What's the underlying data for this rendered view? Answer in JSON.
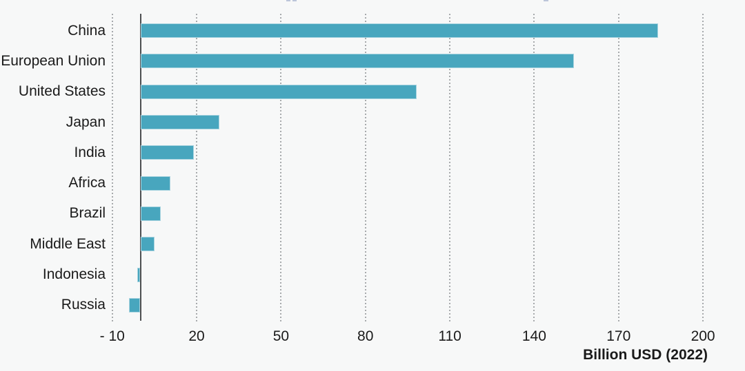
{
  "chart_data": {
    "type": "bar",
    "orientation": "horizontal",
    "title": "",
    "xlabel": "Billion USD (2022)",
    "ylabel": "",
    "categories": [
      "China",
      "European Union",
      "United States",
      "Japan",
      "India",
      "Africa",
      "Brazil",
      "Middle East",
      "Indonesia",
      "Russia"
    ],
    "values": [
      184,
      154,
      98,
      28,
      19,
      10.5,
      7,
      5,
      -1,
      -4
    ],
    "x_ticks": [
      {
        "label": "- 10",
        "value": -10
      },
      {
        "label": "20",
        "value": 20
      },
      {
        "label": "50",
        "value": 50
      },
      {
        "label": "80",
        "value": 80
      },
      {
        "label": "110",
        "value": 110
      },
      {
        "label": "140",
        "value": 140
      },
      {
        "label": "170",
        "value": 170
      },
      {
        "label": "200",
        "value": 200
      }
    ],
    "xlim": [
      -10,
      200
    ],
    "grid": "vertical-dotted",
    "legend": "none",
    "bar_color": "#48a6be"
  },
  "colors": {
    "bar_fill": "#48a6be",
    "bar_edge": "#a9d4e0",
    "axis_line": "#4d4f51",
    "gridline": "#a6a9ab",
    "background": "#f7f8f8",
    "text": "#1a1a1a"
  }
}
